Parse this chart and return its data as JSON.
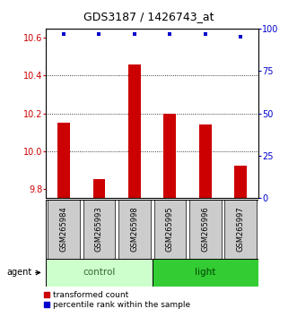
{
  "title": "GDS3187 / 1426743_at",
  "samples": [
    "GSM265984",
    "GSM265993",
    "GSM265998",
    "GSM265995",
    "GSM265996",
    "GSM265997"
  ],
  "groups": [
    "control",
    "control",
    "control",
    "light",
    "light",
    "light"
  ],
  "transformed_counts": [
    10.15,
    9.85,
    10.46,
    10.2,
    10.14,
    9.92
  ],
  "percentile_ranks": [
    97,
    97,
    97,
    97,
    97,
    95
  ],
  "ylim_left": [
    9.75,
    10.65
  ],
  "ylim_right": [
    0,
    100
  ],
  "yticks_left": [
    9.8,
    10.0,
    10.2,
    10.4,
    10.6
  ],
  "yticks_right": [
    0,
    25,
    50,
    75,
    100
  ],
  "bar_color": "#cc0000",
  "dot_color": "#0000cc",
  "control_color": "#ccffcc",
  "light_color": "#33cc33",
  "sample_box_color": "#cccccc",
  "title_fontsize": 9,
  "tick_fontsize": 7,
  "legend_fontsize": 6.5
}
